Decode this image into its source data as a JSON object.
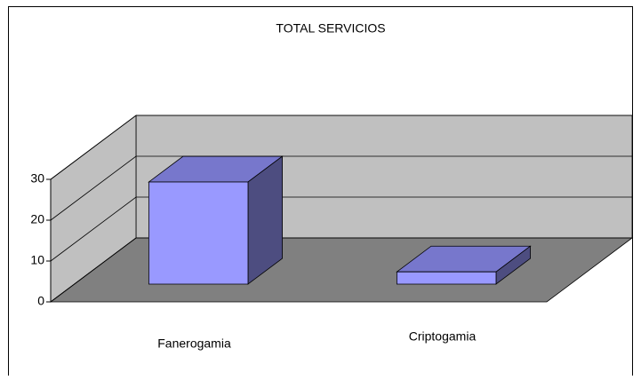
{
  "chart_data": {
    "type": "bar",
    "title": "TOTAL SERVICIOS",
    "categories": [
      "Fanerogamia",
      "Criptogamia"
    ],
    "values": [
      25,
      3
    ],
    "color": "#9999ff",
    "ylim": [
      0,
      30
    ],
    "yticks": [
      0,
      10,
      20,
      30
    ],
    "grid": true
  }
}
